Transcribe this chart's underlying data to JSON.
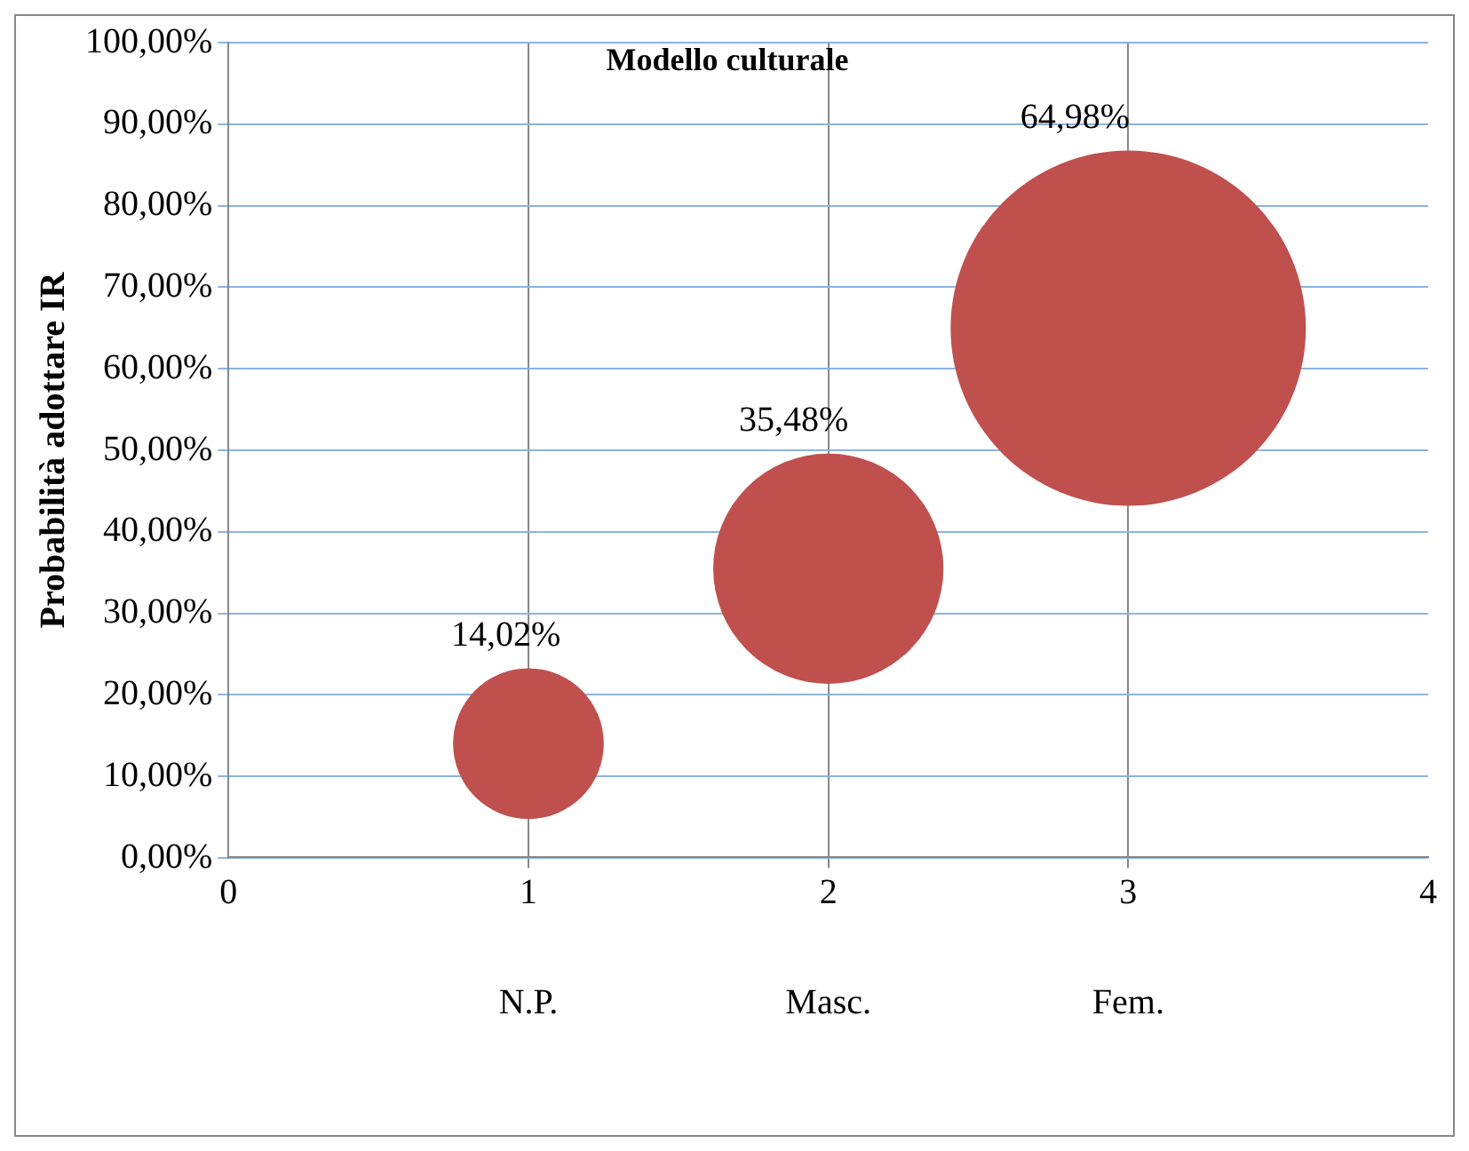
{
  "chart_data": {
    "type": "bubble",
    "title": "Modello culturale",
    "ylabel": "Probabilità adottare IR",
    "x": [
      1,
      2,
      3
    ],
    "values": [
      14.02,
      35.48,
      64.98
    ],
    "sizes": [
      0.18,
      0.42,
      1
    ],
    "color": "#c0504d",
    "value_labels": [
      "14,02%",
      "35,48%",
      "64,98%"
    ],
    "xlim": [
      0,
      4
    ],
    "xticks": [
      0,
      1,
      2,
      3,
      4
    ],
    "ylim": [
      0,
      100
    ],
    "yticks": [
      {
        "value": 0,
        "label": "0,00%"
      },
      {
        "value": 10,
        "label": "10,00%"
      },
      {
        "value": 20,
        "label": "20,00%"
      },
      {
        "value": 30,
        "label": "30,00%"
      },
      {
        "value": 40,
        "label": "40,00%"
      },
      {
        "value": 50,
        "label": "50,00%"
      },
      {
        "value": 60,
        "label": "60,00%"
      },
      {
        "value": 70,
        "label": "70,00%"
      },
      {
        "value": 80,
        "label": "80,00%"
      },
      {
        "value": 90,
        "label": "90,00%"
      },
      {
        "value": 100,
        "label": "100,00%"
      }
    ],
    "annotations": [
      "N.P.",
      "Masc.",
      "Fem."
    ],
    "grid": true,
    "legend": false
  }
}
